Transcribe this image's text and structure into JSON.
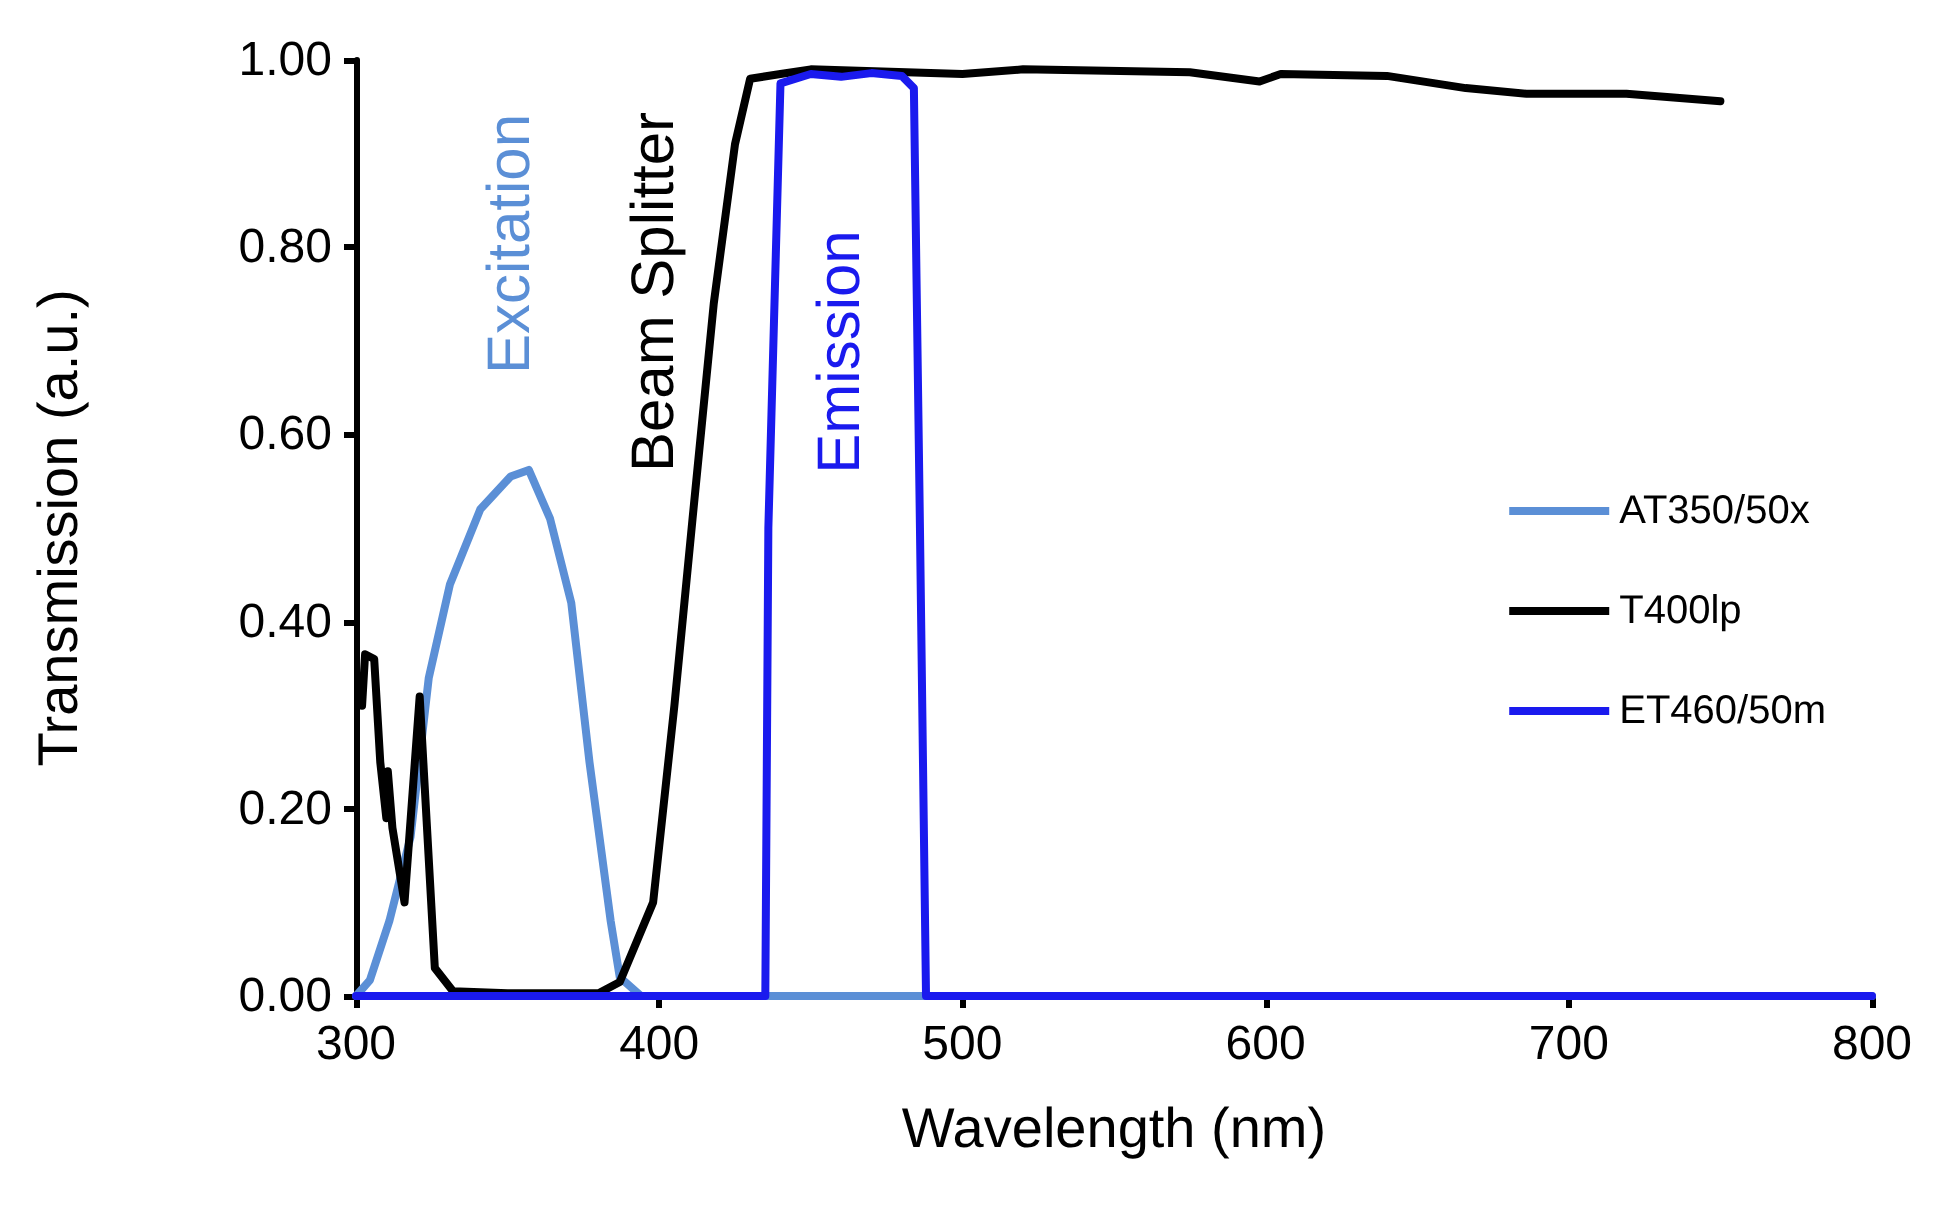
{
  "chart_data": {
    "type": "line",
    "xlabel": "Wavelength (nm)",
    "ylabel": "Transmission (a.u.)",
    "xlim": [
      300,
      800
    ],
    "xticks": [
      300,
      400,
      500,
      600,
      700,
      800
    ],
    "ylim": [
      0,
      1
    ],
    "yticks": [
      {
        "value": 0,
        "label": "0.00"
      },
      {
        "value": 0.2,
        "label": "0.20"
      },
      {
        "value": 0.4,
        "label": "0.40"
      },
      {
        "value": 0.6,
        "label": "0.60"
      },
      {
        "value": 0.8,
        "label": "0.80"
      },
      {
        "value": 1,
        "label": "1.00"
      }
    ],
    "grid": false,
    "legend": "right",
    "marker": "none",
    "line_style": "solid",
    "annotations": [
      "Excitation",
      "Beam Splitter",
      "Emission"
    ],
    "series": [
      {
        "name": "AT350/50x",
        "color": "#5b8fd6",
        "x": [
          300,
          304.6,
          311,
          318,
          324,
          331,
          341,
          351,
          357,
          364,
          371,
          377,
          384,
          387,
          394,
          500,
          800
        ],
        "values": [
          0,
          0.017,
          0.08,
          0.17,
          0.34,
          0.44,
          0.52,
          0.555,
          0.562,
          0.51,
          0.42,
          0.25,
          0.08,
          0.02,
          0,
          0,
          0
        ]
      },
      {
        "name": "T400lp",
        "color": "#000000",
        "x": [
          302,
          303,
          306,
          308,
          310,
          310.5,
          312,
          316,
          321,
          326,
          332,
          350,
          380,
          387,
          398,
          405,
          411,
          418,
          425,
          430,
          440,
          450,
          500,
          520,
          575,
          598,
          605,
          640,
          666,
          686,
          719,
          750
        ],
        "values": [
          0.31,
          0.365,
          0.36,
          0.25,
          0.19,
          0.24,
          0.18,
          0.1,
          0.32,
          0.03,
          0.005,
          0.003,
          0.003,
          0.015,
          0.1,
          0.31,
          0.51,
          0.74,
          0.91,
          0.98,
          0.985,
          0.99,
          0.985,
          0.99,
          0.987,
          0.977,
          0.985,
          0.983,
          0.97,
          0.964,
          0.964,
          0.956
        ]
      },
      {
        "name": "ET460/50m",
        "color": "#1a1aee",
        "x": [
          300,
          435,
          436,
          440,
          450,
          460,
          470,
          480,
          484,
          486,
          488,
          800
        ],
        "values": [
          0,
          0,
          0.5,
          0.975,
          0.985,
          0.982,
          0.986,
          0.983,
          0.97,
          0.5,
          0,
          0
        ]
      }
    ]
  }
}
